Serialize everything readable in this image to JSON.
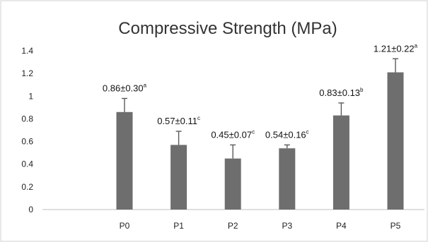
{
  "chart_data": {
    "type": "bar",
    "title": "Compressive Strength (MPa)",
    "xlabel": "",
    "ylabel": "",
    "categories": [
      "P0",
      "P1",
      "P2",
      "P3",
      "P4",
      "P5"
    ],
    "values": [
      0.86,
      0.57,
      0.45,
      0.54,
      0.83,
      1.21
    ],
    "errors": [
      0.12,
      0.12,
      0.12,
      0.03,
      0.11,
      0.12
    ],
    "labels": [
      {
        "value": "0.86±0.30",
        "sup": "a"
      },
      {
        "value": "0.57±0.11",
        "sup": "c"
      },
      {
        "value": "0.45±0.07",
        "sup": "c"
      },
      {
        "value": "0.54±0.16",
        "sup": "c"
      },
      {
        "value": "0.83±0.13",
        "sup": "b"
      },
      {
        "value": "1.21±0.22",
        "sup": "a"
      }
    ],
    "yticks": [
      "0",
      "0.2",
      "0.4",
      "0.6",
      "0.8",
      "1",
      "1.2",
      "1.4"
    ],
    "ylim": [
      0,
      1.4
    ],
    "grid": false,
    "legend": "none",
    "bar_color": "#6e6e6e",
    "error_color": "#5a5a5a"
  }
}
